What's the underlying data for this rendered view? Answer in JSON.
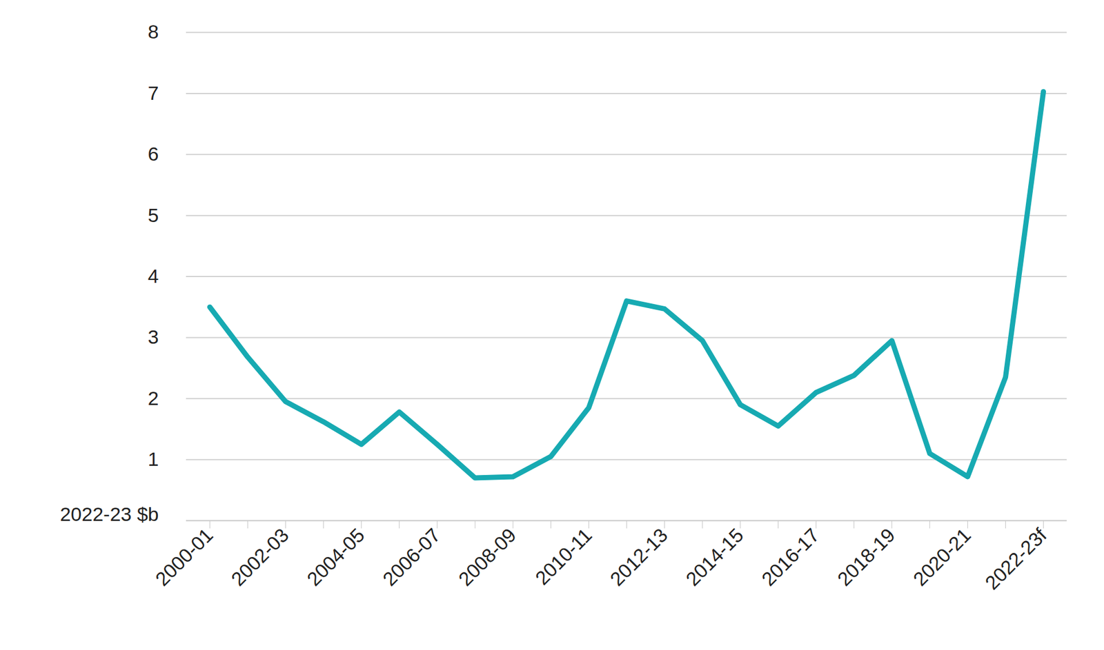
{
  "chart_data": {
    "type": "line",
    "y_label": "2022-23 $b",
    "categories": [
      "2000-01",
      null,
      "2002-03",
      null,
      "2004-05",
      null,
      "2006-07",
      null,
      "2008-09",
      null,
      "2010-11",
      null,
      "2012-13",
      null,
      "2014-15",
      null,
      "2016-17",
      null,
      "2018-19",
      null,
      "2020-21",
      null,
      "2022-23f"
    ],
    "values": [
      3.5,
      2.68,
      1.95,
      1.62,
      1.25,
      1.78,
      1.25,
      0.7,
      0.72,
      1.05,
      1.85,
      3.6,
      3.47,
      2.95,
      1.9,
      1.55,
      2.1,
      2.38,
      2.95,
      1.1,
      0.72,
      2.35,
      7.03
    ],
    "color": "#17aab2",
    "ylim": [
      0,
      8
    ],
    "yticks": [
      1,
      2,
      3,
      4,
      5,
      6,
      7,
      8
    ],
    "grid": true
  }
}
